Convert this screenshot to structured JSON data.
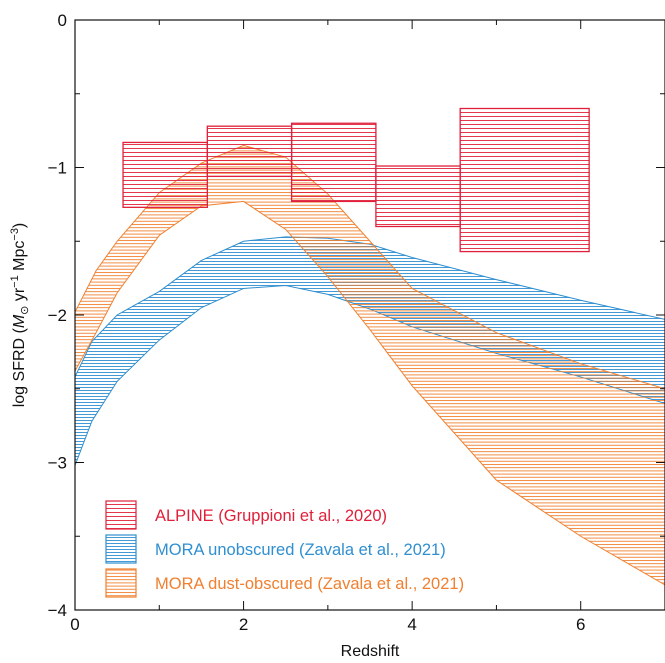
{
  "chart_data": {
    "type": "area",
    "xlabel": "Redshift",
    "ylabel": {
      "prefix": "log SFRD (",
      "m": "M",
      "sun": "⊙",
      "mid": " yr",
      "exp1": "−1",
      "mid2": " Mpc",
      "exp2": "−3",
      "suffix": ")"
    },
    "xlim": [
      0,
      7
    ],
    "ylim": [
      -4,
      0
    ],
    "xticks": [
      0,
      2,
      4,
      6
    ],
    "xtick_labels": [
      "0",
      "2",
      "4",
      "6"
    ],
    "yticks": [
      -4,
      -3,
      -2,
      -1,
      0
    ],
    "ytick_labels": [
      "−4",
      "−3",
      "−2",
      "−1",
      "0"
    ],
    "legend_position": "bottom-left",
    "series": [
      {
        "name": "ALPINE (Gruppioni et al., 2020)",
        "kind": "boxes",
        "color": "#e0203a",
        "boxes": [
          {
            "x0": 0.57,
            "x1": 1.57,
            "y0": -1.27,
            "y1": -0.83
          },
          {
            "x0": 1.57,
            "x1": 2.57,
            "y0": -1.06,
            "y1": -0.72
          },
          {
            "x0": 2.57,
            "x1": 3.57,
            "y0": -1.23,
            "y1": -0.7
          },
          {
            "x0": 3.57,
            "x1": 4.57,
            "y0": -1.4,
            "y1": -0.99
          },
          {
            "x0": 4.57,
            "x1": 6.1,
            "y0": -1.57,
            "y1": -0.6
          }
        ]
      },
      {
        "name": "MORA unobscured (Zavala et al., 2021)",
        "kind": "band",
        "color": "#2f8fd0",
        "x": [
          0,
          0.2,
          0.5,
          1,
          1.5,
          2,
          2.5,
          3,
          3.5,
          4,
          5,
          6,
          7
        ],
        "lower": [
          -3.02,
          -2.72,
          -2.45,
          -2.17,
          -1.95,
          -1.82,
          -1.8,
          -1.86,
          -1.96,
          -2.08,
          -2.26,
          -2.42,
          -2.6
        ],
        "upper": [
          -2.42,
          -2.18,
          -2.0,
          -1.84,
          -1.63,
          -1.5,
          -1.47,
          -1.48,
          -1.52,
          -1.61,
          -1.76,
          -1.9,
          -2.03
        ]
      },
      {
        "name": "MORA dust-obscured (Zavala et al., 2021)",
        "kind": "band",
        "color": "#f08030",
        "x": [
          0,
          0.25,
          0.5,
          1,
          1.5,
          2,
          2.5,
          3,
          3.5,
          4,
          5,
          6,
          7
        ],
        "lower": [
          -2.38,
          -2.12,
          -1.85,
          -1.46,
          -1.26,
          -1.23,
          -1.42,
          -1.74,
          -2.1,
          -2.48,
          -3.12,
          -3.5,
          -3.83
        ],
        "upper": [
          -1.98,
          -1.7,
          -1.5,
          -1.17,
          -0.97,
          -0.85,
          -0.93,
          -1.18,
          -1.5,
          -1.82,
          -2.12,
          -2.33,
          -2.5
        ]
      }
    ]
  }
}
